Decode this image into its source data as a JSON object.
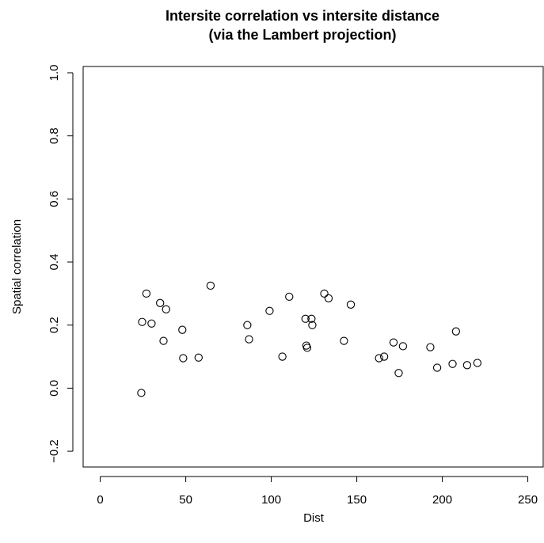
{
  "chart_data": {
    "type": "scatter",
    "title": "Intersite correlation vs intersite distance",
    "subtitle": "(via the Lambert projection)",
    "xlabel": "Dist",
    "ylabel": "Spatial correlation",
    "xlim": [
      -10,
      259
    ],
    "ylim": [
      -0.25,
      1.02
    ],
    "x_ticks": [
      0,
      50,
      100,
      150,
      200,
      250
    ],
    "x_tick_labels": [
      "0",
      "50",
      "100",
      "150",
      "200",
      "250"
    ],
    "y_ticks": [
      -0.2,
      0.0,
      0.2,
      0.4,
      0.6,
      0.8,
      1.0
    ],
    "y_tick_labels": [
      "−0.2",
      "0.0",
      "0.2",
      "0.4",
      "0.6",
      "0.8",
      "1.0"
    ],
    "grid": false,
    "legend": "none",
    "point_color": "#000000",
    "points": [
      {
        "x": 24,
        "y": -0.015
      },
      {
        "x": 24.5,
        "y": 0.21
      },
      {
        "x": 27,
        "y": 0.3
      },
      {
        "x": 30,
        "y": 0.205
      },
      {
        "x": 35,
        "y": 0.27
      },
      {
        "x": 37,
        "y": 0.15
      },
      {
        "x": 38.5,
        "y": 0.25
      },
      {
        "x": 48,
        "y": 0.185
      },
      {
        "x": 48.5,
        "y": 0.095
      },
      {
        "x": 57.5,
        "y": 0.097
      },
      {
        "x": 64.5,
        "y": 0.325
      },
      {
        "x": 86,
        "y": 0.2
      },
      {
        "x": 87,
        "y": 0.155
      },
      {
        "x": 99,
        "y": 0.245
      },
      {
        "x": 106.5,
        "y": 0.1
      },
      {
        "x": 110.5,
        "y": 0.29
      },
      {
        "x": 120,
        "y": 0.22
      },
      {
        "x": 120.5,
        "y": 0.135
      },
      {
        "x": 121,
        "y": 0.128
      },
      {
        "x": 123.5,
        "y": 0.22
      },
      {
        "x": 124,
        "y": 0.2
      },
      {
        "x": 131,
        "y": 0.3
      },
      {
        "x": 133.5,
        "y": 0.285
      },
      {
        "x": 142.5,
        "y": 0.15
      },
      {
        "x": 146.5,
        "y": 0.265
      },
      {
        "x": 163,
        "y": 0.095
      },
      {
        "x": 166,
        "y": 0.1
      },
      {
        "x": 171.5,
        "y": 0.145
      },
      {
        "x": 174.5,
        "y": 0.048
      },
      {
        "x": 177,
        "y": 0.133
      },
      {
        "x": 193,
        "y": 0.13
      },
      {
        "x": 197,
        "y": 0.065
      },
      {
        "x": 206,
        "y": 0.077
      },
      {
        "x": 208,
        "y": 0.18
      },
      {
        "x": 214.5,
        "y": 0.073
      },
      {
        "x": 220.5,
        "y": 0.08
      }
    ]
  }
}
